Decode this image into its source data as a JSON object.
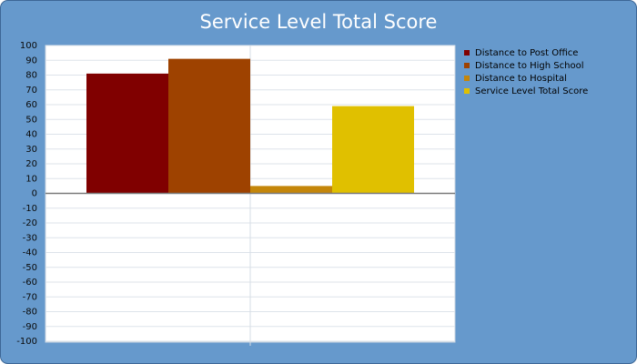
{
  "chart_data": {
    "type": "bar",
    "title": "Service Level Total Score",
    "categories": [
      null
    ],
    "series": [
      {
        "name": "Distance to Post Office",
        "color": "#800000",
        "values": [
          81
        ]
      },
      {
        "name": "Distance to High School",
        "color": "#9e4200",
        "values": [
          91
        ]
      },
      {
        "name": "Distance to Hospital",
        "color": "#c4860a",
        "values": [
          5
        ]
      },
      {
        "name": "Service Level Total Score",
        "color": "#e0c000",
        "values": [
          59
        ]
      }
    ],
    "ylim": [
      -100,
      100
    ],
    "yticks": [
      -100,
      -90,
      -80,
      -70,
      -60,
      -50,
      -40,
      -30,
      -20,
      -10,
      0,
      10,
      20,
      30,
      40,
      50,
      60,
      70,
      80,
      90,
      100
    ],
    "grid": true,
    "legend": "right"
  }
}
